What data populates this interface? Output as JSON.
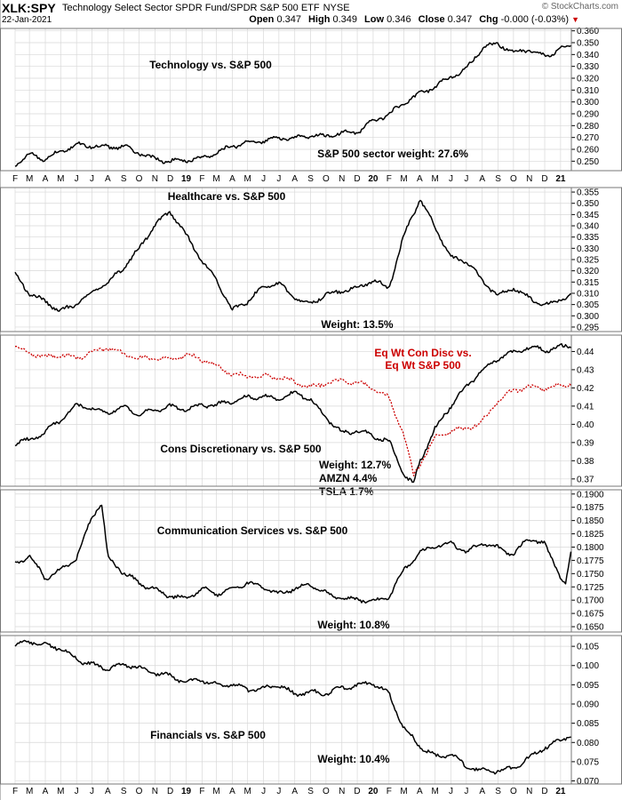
{
  "header": {
    "symbol": "XLK:SPY",
    "description": "Technology Select Sector SPDR Fund/SPDR S&P 500 ETF",
    "exchange": "NYSE",
    "date": "22-Jan-2021",
    "open_label": "Open",
    "open": "0.347",
    "high_label": "High",
    "high": "0.349",
    "low_label": "Low",
    "low": "0.346",
    "close_label": "Close",
    "close": "0.347",
    "chg_label": "Chg",
    "chg": "-0.000 (-0.03%)",
    "brand": "© StockCharts.com",
    "down_color": "#cc0000"
  },
  "colors": {
    "line": "#000000",
    "eqwt": "#cc0000",
    "grid": "#d8d8d8",
    "panel_border": "#777777"
  },
  "chart_data": [
    {
      "type": "line",
      "title": "Technology vs. S&P 500",
      "annotations": [
        "S&P 500 sector weight: 27.6%"
      ],
      "x_ticks": [
        "F",
        "M",
        "A",
        "M",
        "J",
        "J",
        "A",
        "S",
        "O",
        "N",
        "D",
        "19",
        "F",
        "M",
        "A",
        "M",
        "J",
        "J",
        "A",
        "S",
        "O",
        "N",
        "D",
        "20",
        "F",
        "M",
        "A",
        "M",
        "J",
        "J",
        "A",
        "S",
        "O",
        "N",
        "D",
        "21"
      ],
      "x_ticks_bold": [
        "19",
        "20",
        "21"
      ],
      "y_ticks": [
        0.25,
        0.26,
        0.27,
        0.28,
        0.29,
        0.3,
        0.31,
        0.32,
        0.33,
        0.34,
        0.35,
        0.36
      ],
      "y_decimals": 3,
      "ylim": [
        0.242,
        0.362
      ],
      "x_range": [
        "2018-02-01",
        "2021-01-22"
      ],
      "series": [
        {
          "x": [
            "2018-02-01",
            "2018-03-01",
            "2018-04-01",
            "2018-05-01",
            "2018-06-01",
            "2018-07-01",
            "2018-08-01",
            "2018-09-01",
            "2018-10-01",
            "2018-11-01",
            "2018-12-01",
            "2019-01-01",
            "2019-02-01",
            "2019-03-01",
            "2019-04-01",
            "2019-05-01",
            "2019-06-01",
            "2019-07-01",
            "2019-08-01",
            "2019-09-01",
            "2019-10-01",
            "2019-11-01",
            "2019-12-01",
            "2020-01-01",
            "2020-02-01",
            "2020-03-01",
            "2020-04-01",
            "2020-05-01",
            "2020-06-01",
            "2020-07-01",
            "2020-08-01",
            "2020-09-01",
            "2020-10-01",
            "2020-11-01",
            "2020-12-01",
            "2021-01-22"
          ],
          "values": [
            0.246,
            0.255,
            0.252,
            0.26,
            0.264,
            0.262,
            0.261,
            0.263,
            0.258,
            0.252,
            0.249,
            0.25,
            0.253,
            0.258,
            0.263,
            0.265,
            0.266,
            0.27,
            0.27,
            0.272,
            0.27,
            0.273,
            0.275,
            0.285,
            0.29,
            0.298,
            0.306,
            0.313,
            0.322,
            0.328,
            0.345,
            0.348,
            0.342,
            0.345,
            0.339,
            0.347
          ]
        }
      ]
    },
    {
      "type": "line",
      "title": "Healthcare vs. S&P 500",
      "annotations": [
        "Weight: 13.5%"
      ],
      "x_ticks": [],
      "y_ticks": [
        0.295,
        0.3,
        0.305,
        0.31,
        0.315,
        0.32,
        0.325,
        0.33,
        0.335,
        0.34,
        0.345,
        0.35,
        0.355
      ],
      "y_decimals": 3,
      "ylim": [
        0.293,
        0.357
      ],
      "x_range": [
        "2018-02-01",
        "2021-01-22"
      ],
      "series": [
        {
          "x": [
            "2018-02-01",
            "2018-03-01",
            "2018-04-01",
            "2018-05-01",
            "2018-06-01",
            "2018-07-01",
            "2018-08-01",
            "2018-09-01",
            "2018-10-01",
            "2018-11-01",
            "2018-12-01",
            "2019-01-01",
            "2019-02-01",
            "2019-03-01",
            "2019-04-01",
            "2019-05-01",
            "2019-06-01",
            "2019-07-01",
            "2019-08-01",
            "2019-09-01",
            "2019-10-01",
            "2019-11-01",
            "2019-12-01",
            "2020-01-01",
            "2020-02-01",
            "2020-03-01",
            "2020-04-01",
            "2020-05-01",
            "2020-06-01",
            "2020-07-01",
            "2020-08-01",
            "2020-09-01",
            "2020-10-01",
            "2020-11-01",
            "2020-12-01",
            "2021-01-22"
          ],
          "values": [
            0.318,
            0.31,
            0.307,
            0.302,
            0.305,
            0.31,
            0.315,
            0.322,
            0.33,
            0.34,
            0.346,
            0.336,
            0.325,
            0.316,
            0.302,
            0.306,
            0.313,
            0.315,
            0.308,
            0.305,
            0.309,
            0.311,
            0.313,
            0.316,
            0.312,
            0.335,
            0.352,
            0.34,
            0.326,
            0.324,
            0.315,
            0.309,
            0.313,
            0.308,
            0.304,
            0.309
          ]
        }
      ]
    },
    {
      "type": "line",
      "title": "Cons Discretionary vs. S&P 500",
      "annotations": [
        "Weight: 12.7%",
        "AMZN 4.4%",
        "TSLA 1.7%",
        "Eq Wt Con Disc vs.",
        "Eq Wt S&P 500"
      ],
      "x_ticks": [],
      "y_ticks": [
        0.37,
        0.38,
        0.39,
        0.4,
        0.41,
        0.42,
        0.43,
        0.44
      ],
      "y_decimals": 2,
      "ylim": [
        0.366,
        0.449
      ],
      "x_range": [
        "2018-02-01",
        "2021-01-22"
      ],
      "series": [
        {
          "style": "solid",
          "x": [
            "2018-02-01",
            "2018-03-01",
            "2018-04-01",
            "2018-05-01",
            "2018-06-01",
            "2018-07-01",
            "2018-08-01",
            "2018-09-01",
            "2018-10-01",
            "2018-11-01",
            "2018-12-01",
            "2019-01-01",
            "2019-02-01",
            "2019-03-01",
            "2019-04-01",
            "2019-05-01",
            "2019-06-01",
            "2019-07-01",
            "2019-08-01",
            "2019-09-01",
            "2019-10-01",
            "2019-11-01",
            "2019-12-01",
            "2020-01-01",
            "2020-02-01",
            "2020-03-01",
            "2020-03-20",
            "2020-04-01",
            "2020-05-01",
            "2020-06-01",
            "2020-07-01",
            "2020-08-01",
            "2020-09-01",
            "2020-10-01",
            "2020-11-01",
            "2020-12-01",
            "2021-01-22"
          ],
          "values": [
            0.39,
            0.392,
            0.396,
            0.402,
            0.41,
            0.409,
            0.407,
            0.41,
            0.405,
            0.407,
            0.41,
            0.409,
            0.411,
            0.41,
            0.412,
            0.415,
            0.416,
            0.414,
            0.417,
            0.413,
            0.404,
            0.396,
            0.397,
            0.393,
            0.39,
            0.372,
            0.368,
            0.38,
            0.398,
            0.41,
            0.42,
            0.43,
            0.437,
            0.44,
            0.442,
            0.44,
            0.444
          ]
        },
        {
          "style": "dotted",
          "x": [
            "2018-02-01",
            "2018-03-01",
            "2018-04-01",
            "2018-05-01",
            "2018-06-01",
            "2018-07-01",
            "2018-08-01",
            "2018-09-01",
            "2018-10-01",
            "2018-11-01",
            "2018-12-01",
            "2019-01-01",
            "2019-02-01",
            "2019-03-01",
            "2019-04-01",
            "2019-05-01",
            "2019-06-01",
            "2019-07-01",
            "2019-08-01",
            "2019-09-01",
            "2019-10-01",
            "2019-11-01",
            "2019-12-01",
            "2020-01-01",
            "2020-02-01",
            "2020-03-01",
            "2020-03-20",
            "2020-04-01",
            "2020-05-01",
            "2020-06-01",
            "2020-07-01",
            "2020-08-01",
            "2020-09-01",
            "2020-10-01",
            "2020-11-01",
            "2020-12-01",
            "2021-01-22"
          ],
          "values": [
            0.443,
            0.439,
            0.436,
            0.438,
            0.437,
            0.44,
            0.442,
            0.438,
            0.436,
            0.437,
            0.436,
            0.438,
            0.435,
            0.432,
            0.428,
            0.427,
            0.426,
            0.425,
            0.423,
            0.421,
            0.423,
            0.424,
            0.422,
            0.42,
            0.415,
            0.395,
            0.372,
            0.378,
            0.392,
            0.396,
            0.398,
            0.402,
            0.413,
            0.418,
            0.42,
            0.42,
            0.423
          ]
        }
      ]
    },
    {
      "type": "line",
      "title": "Communication Services vs. S&P 500",
      "annotations": [
        "Weight: 10.8%"
      ],
      "x_ticks": [],
      "y_ticks": [
        0.165,
        0.1675,
        0.17,
        0.1725,
        0.175,
        0.1775,
        0.18,
        0.1825,
        0.185,
        0.1875,
        0.19
      ],
      "y_decimals": 4,
      "ylim": [
        0.164,
        0.1908
      ],
      "x_range": [
        "2018-02-01",
        "2021-01-22"
      ],
      "series": [
        {
          "x": [
            "2018-02-01",
            "2018-03-01",
            "2018-04-01",
            "2018-05-01",
            "2018-06-01",
            "2018-07-01",
            "2018-07-20",
            "2018-08-01",
            "2018-09-01",
            "2018-10-01",
            "2018-11-01",
            "2018-12-01",
            "2019-01-01",
            "2019-02-01",
            "2019-03-01",
            "2019-04-01",
            "2019-05-01",
            "2019-06-01",
            "2019-07-01",
            "2019-08-01",
            "2019-09-01",
            "2019-10-01",
            "2019-11-01",
            "2019-12-01",
            "2020-01-01",
            "2020-02-01",
            "2020-03-01",
            "2020-04-01",
            "2020-05-01",
            "2020-06-01",
            "2020-07-01",
            "2020-08-01",
            "2020-09-01",
            "2020-10-01",
            "2020-11-01",
            "2020-12-01",
            "2021-01-10",
            "2021-01-22"
          ],
          "values": [
            0.177,
            0.1785,
            0.174,
            0.1755,
            0.178,
            0.186,
            0.1885,
            0.178,
            0.175,
            0.173,
            0.172,
            0.171,
            0.1705,
            0.172,
            0.171,
            0.172,
            0.1735,
            0.1725,
            0.171,
            0.172,
            0.173,
            0.1715,
            0.1705,
            0.17,
            0.1695,
            0.1705,
            0.176,
            0.179,
            0.18,
            0.1805,
            0.179,
            0.181,
            0.18,
            0.1785,
            0.1815,
            0.1805,
            0.173,
            0.1795
          ]
        }
      ]
    },
    {
      "type": "line",
      "title": "Financials vs. S&P 500",
      "annotations": [
        "Weight: 10.4%"
      ],
      "x_ticks": [
        "F",
        "M",
        "A",
        "M",
        "J",
        "J",
        "A",
        "S",
        "O",
        "N",
        "D",
        "19",
        "F",
        "M",
        "A",
        "M",
        "J",
        "J",
        "A",
        "S",
        "O",
        "N",
        "D",
        "20",
        "F",
        "M",
        "A",
        "M",
        "J",
        "J",
        "A",
        "S",
        "O",
        "N",
        "D",
        "21"
      ],
      "x_ticks_bold": [
        "19",
        "20",
        "21"
      ],
      "y_ticks": [
        0.07,
        0.075,
        0.08,
        0.085,
        0.09,
        0.095,
        0.1,
        0.105
      ],
      "y_decimals": 3,
      "ylim": [
        0.0692,
        0.1078
      ],
      "x_range": [
        "2018-02-01",
        "2021-01-22"
      ],
      "series": [
        {
          "x": [
            "2018-02-01",
            "2018-03-01",
            "2018-04-01",
            "2018-05-01",
            "2018-06-01",
            "2018-07-01",
            "2018-08-01",
            "2018-09-01",
            "2018-10-01",
            "2018-11-01",
            "2018-12-01",
            "2019-01-01",
            "2019-02-01",
            "2019-03-01",
            "2019-04-01",
            "2019-05-01",
            "2019-06-01",
            "2019-07-01",
            "2019-08-01",
            "2019-09-01",
            "2019-10-01",
            "2019-11-01",
            "2019-12-01",
            "2020-01-01",
            "2020-02-01",
            "2020-03-01",
            "2020-04-01",
            "2020-05-01",
            "2020-06-01",
            "2020-07-01",
            "2020-08-01",
            "2020-09-01",
            "2020-10-01",
            "2020-11-01",
            "2020-12-01",
            "2021-01-22"
          ],
          "values": [
            0.1055,
            0.1062,
            0.105,
            0.1045,
            0.102,
            0.1005,
            0.099,
            0.1,
            0.0995,
            0.0985,
            0.0975,
            0.0955,
            0.096,
            0.095,
            0.0955,
            0.094,
            0.094,
            0.0945,
            0.0925,
            0.0935,
            0.093,
            0.094,
            0.0945,
            0.0955,
            0.093,
            0.084,
            0.079,
            0.076,
            0.077,
            0.074,
            0.073,
            0.0725,
            0.073,
            0.076,
            0.079,
            0.082
          ]
        }
      ]
    }
  ]
}
